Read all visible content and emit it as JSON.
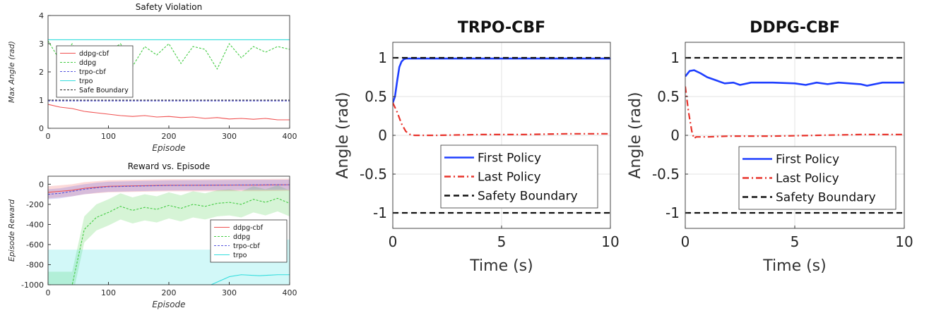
{
  "chart_data": [
    {
      "type": "line",
      "title": "Safety Violation",
      "xlabel": "Episode",
      "ylabel": "Max Angle (rad)",
      "xlim": [
        0,
        400
      ],
      "ylim": [
        0,
        4
      ],
      "x_ticks": [
        "0",
        "100",
        "200",
        "300",
        "400"
      ],
      "y_ticks": [
        "0",
        "1",
        "2",
        "3",
        "4"
      ],
      "legend_position": "left-middle",
      "series": [
        {
          "name": "ddpg-cbf",
          "color": "#f05050",
          "style": "solid",
          "x": [
            0,
            20,
            40,
            60,
            80,
            100,
            120,
            140,
            160,
            180,
            200,
            220,
            240,
            260,
            280,
            300,
            320,
            340,
            360,
            380,
            400
          ],
          "y": [
            0.85,
            0.75,
            0.7,
            0.6,
            0.55,
            0.5,
            0.45,
            0.42,
            0.45,
            0.4,
            0.42,
            0.38,
            0.4,
            0.35,
            0.38,
            0.33,
            0.35,
            0.32,
            0.35,
            0.3,
            0.3
          ]
        },
        {
          "name": "ddpg",
          "color": "#44cc44",
          "style": "dashed",
          "x": [
            0,
            20,
            40,
            60,
            80,
            100,
            120,
            140,
            160,
            180,
            200,
            220,
            240,
            260,
            280,
            300,
            320,
            340,
            360,
            380,
            400
          ],
          "y": [
            3.1,
            2.4,
            3.0,
            2.0,
            2.9,
            2.7,
            3.0,
            2.2,
            2.9,
            2.6,
            3.0,
            2.3,
            2.9,
            2.8,
            2.1,
            3.0,
            2.5,
            2.9,
            2.7,
            2.9,
            2.8
          ]
        },
        {
          "name": "trpo-cbf",
          "color": "#5555dd",
          "style": "dashed",
          "x": [
            0,
            400
          ],
          "y": [
            0.97,
            0.97
          ]
        },
        {
          "name": "trpo",
          "color": "#33dddd",
          "style": "solid",
          "x": [
            0,
            400
          ],
          "y": [
            3.14,
            3.14
          ]
        },
        {
          "name": "Safe Boundary",
          "color": "#222222",
          "style": "dashed",
          "x": [
            0,
            400
          ],
          "y": [
            1.0,
            1.0
          ]
        }
      ]
    },
    {
      "type": "area",
      "title": "Reward vs. Episode",
      "xlabel": "Episode",
      "ylabel": "Episode Reward",
      "xlim": [
        0,
        400
      ],
      "ylim": [
        -1000,
        80
      ],
      "x_ticks": [
        "0",
        "100",
        "200",
        "300",
        "400"
      ],
      "y_ticks": [
        "0",
        "-200",
        "-400",
        "-600",
        "-800",
        "-1000"
      ],
      "legend_position": "bottom-right",
      "series": [
        {
          "name": "ddpg-cbf",
          "color": "#f05050",
          "style": "solid",
          "x": [
            0,
            20,
            40,
            60,
            80,
            100,
            150,
            200,
            250,
            300,
            350,
            400
          ],
          "y": [
            -80,
            -70,
            -60,
            -40,
            -30,
            -20,
            -15,
            -10,
            -10,
            -8,
            -8,
            -5
          ],
          "band": 60
        },
        {
          "name": "ddpg",
          "color": "#44cc44",
          "style": "dashed",
          "x": [
            0,
            40,
            60,
            80,
            100,
            120,
            140,
            160,
            180,
            200,
            220,
            240,
            260,
            280,
            300,
            320,
            340,
            360,
            380,
            400
          ],
          "y": [
            -1000,
            -1000,
            -450,
            -330,
            -280,
            -220,
            -260,
            -230,
            -250,
            -210,
            -240,
            -200,
            -220,
            -190,
            -180,
            -200,
            -150,
            -180,
            -140,
            -190
          ],
          "band": 130
        },
        {
          "name": "trpo-cbf",
          "color": "#5555dd",
          "style": "dashed",
          "x": [
            0,
            20,
            40,
            60,
            80,
            100,
            150,
            200,
            250,
            300,
            350,
            400
          ],
          "y": [
            -100,
            -90,
            -70,
            -50,
            -35,
            -25,
            -18,
            -12,
            -10,
            -8,
            -6,
            -5
          ],
          "band": 50
        },
        {
          "name": "trpo",
          "color": "#33dddd",
          "style": "solid",
          "x": [
            0,
            20,
            40,
            60,
            100,
            150,
            200,
            250,
            270,
            300,
            320,
            350,
            380,
            400
          ],
          "y": [
            -1000,
            -1000,
            -1000,
            -1000,
            -1000,
            -1000,
            -1000,
            -1000,
            -1000,
            -920,
            -900,
            -910,
            -900,
            -900
          ],
          "band": 350
        }
      ]
    },
    {
      "type": "line",
      "title": "TRPO-CBF",
      "xlabel": "Time (s)",
      "ylabel": "Angle (rad)",
      "xlim": [
        0,
        10
      ],
      "ylim": [
        -1.2,
        1.2
      ],
      "x_ticks": [
        "0",
        "5",
        "10"
      ],
      "y_ticks": [
        "1",
        "0.5",
        "0",
        "-0.5",
        "-1"
      ],
      "grid": true,
      "legend_position": "center-bottom",
      "series": [
        {
          "name": "First Policy",
          "color": "#1f3fff",
          "style": "solid",
          "x": [
            0,
            0.1,
            0.2,
            0.3,
            0.4,
            0.5,
            0.6,
            0.8,
            1,
            2,
            4,
            6,
            8,
            10
          ],
          "y": [
            0.42,
            0.5,
            0.7,
            0.88,
            0.95,
            0.98,
            0.99,
            0.99,
            0.99,
            0.99,
            0.99,
            0.99,
            0.99,
            0.99
          ]
        },
        {
          "name": "Last Policy",
          "color": "#e8332b",
          "style": "dashdot",
          "x": [
            0,
            0.2,
            0.4,
            0.6,
            0.8,
            1,
            2,
            4,
            6,
            8,
            10
          ],
          "y": [
            0.42,
            0.3,
            0.15,
            0.05,
            0.01,
            0.0,
            0.0,
            0.01,
            0.01,
            0.02,
            0.02
          ]
        },
        {
          "name": "Safety Boundary",
          "color": "#111111",
          "style": "dashed",
          "x": [
            0,
            10
          ],
          "y": [
            1,
            1
          ]
        },
        {
          "name": "",
          "color": "#111111",
          "style": "dashed",
          "x": [
            0,
            10
          ],
          "y": [
            -1,
            -1
          ]
        }
      ]
    },
    {
      "type": "line",
      "title": "DDPG-CBF",
      "xlabel": "Time (s)",
      "ylabel": "Angle (rad)",
      "xlim": [
        0,
        10
      ],
      "ylim": [
        -1.2,
        1.2
      ],
      "x_ticks": [
        "0",
        "5",
        "10"
      ],
      "y_ticks": [
        "1",
        "0.5",
        "0",
        "-0.5",
        "-1"
      ],
      "grid": true,
      "legend_position": "center-bottom",
      "series": [
        {
          "name": "First Policy",
          "color": "#1f3fff",
          "style": "solid",
          "x": [
            0,
            0.2,
            0.4,
            0.7,
            1,
            1.4,
            1.8,
            2.2,
            2.5,
            3,
            4,
            5,
            5.5,
            6,
            6.5,
            7,
            7.5,
            8,
            8.3,
            9,
            10
          ],
          "y": [
            0.76,
            0.83,
            0.84,
            0.8,
            0.75,
            0.71,
            0.67,
            0.68,
            0.65,
            0.68,
            0.68,
            0.67,
            0.65,
            0.68,
            0.66,
            0.68,
            0.67,
            0.66,
            0.64,
            0.68,
            0.68
          ]
        },
        {
          "name": "Last Policy",
          "color": "#e8332b",
          "style": "dashdot",
          "x": [
            0,
            0.15,
            0.3,
            0.4,
            0.5,
            0.7,
            1,
            2,
            4,
            6,
            8,
            10
          ],
          "y": [
            0.63,
            0.3,
            0.05,
            -0.04,
            -0.02,
            -0.02,
            -0.02,
            -0.01,
            -0.01,
            0.0,
            0.01,
            0.01
          ]
        },
        {
          "name": "Safety Boundary",
          "color": "#111111",
          "style": "dashed",
          "x": [
            0,
            10
          ],
          "y": [
            1,
            1
          ]
        },
        {
          "name": "",
          "color": "#111111",
          "style": "dashed",
          "x": [
            0,
            10
          ],
          "y": [
            -1,
            -1
          ]
        }
      ]
    }
  ]
}
